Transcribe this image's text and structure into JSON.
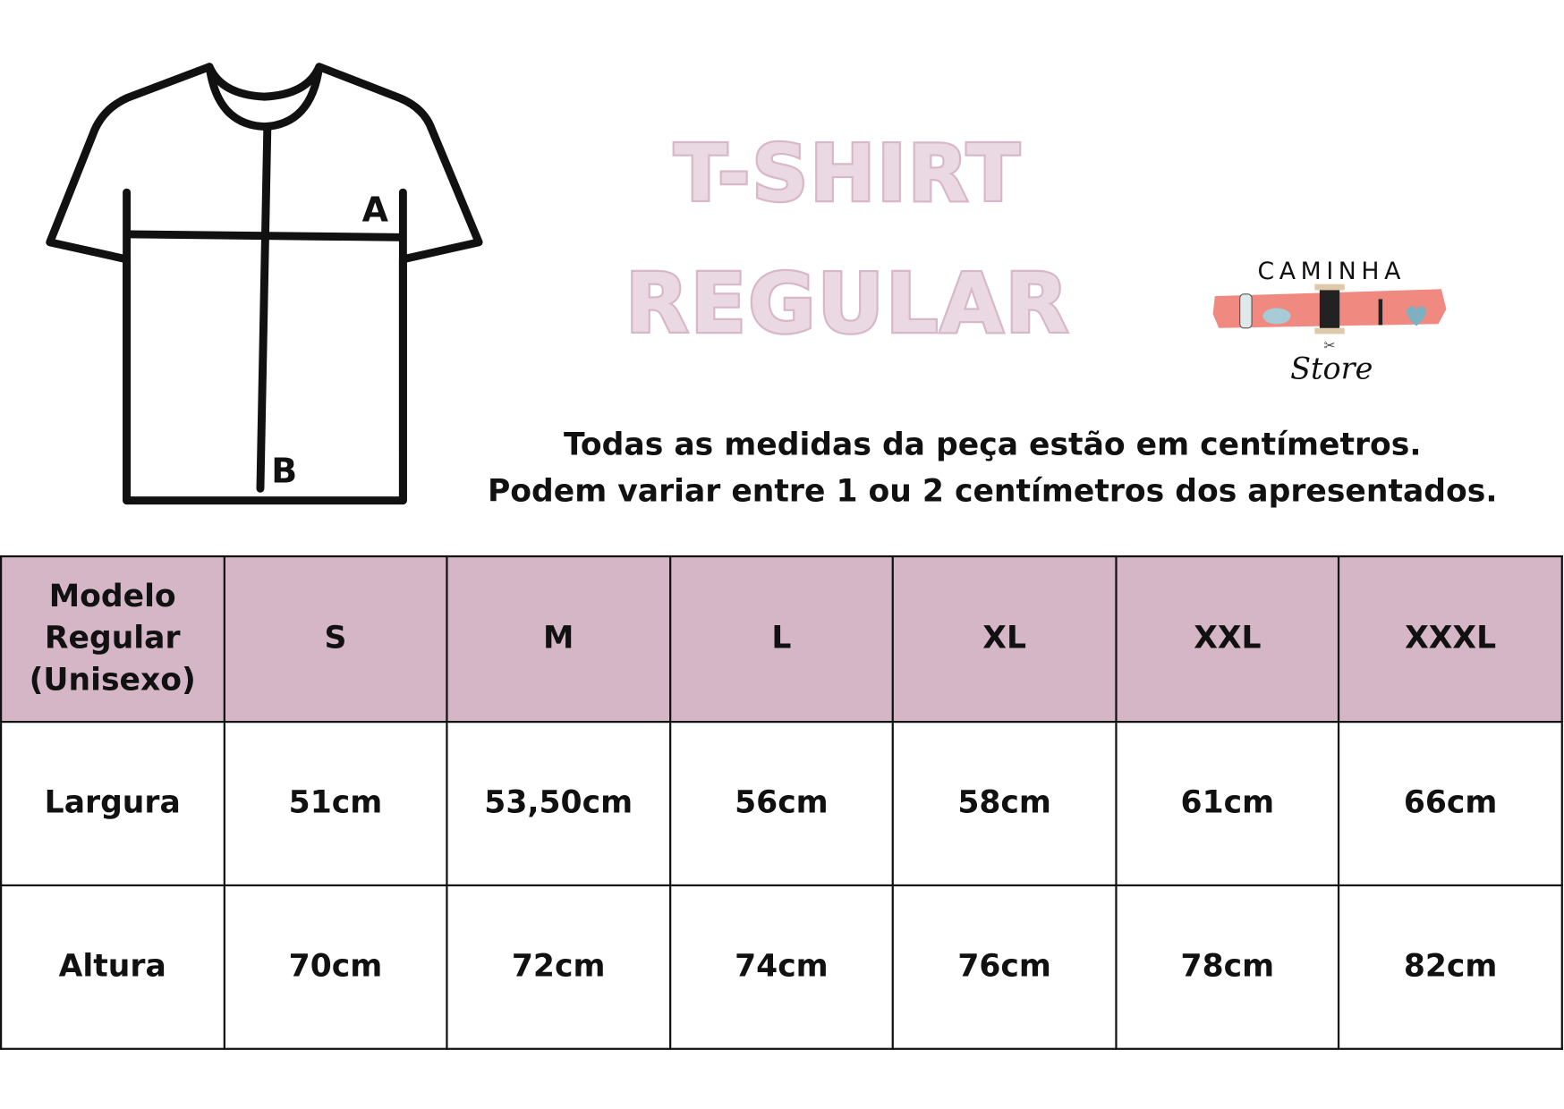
{
  "diagram": {
    "label_a": "A",
    "label_b": "B"
  },
  "title": {
    "line1": "T-SHIRT",
    "line2": "REGULAR"
  },
  "logo": {
    "top_text": "CAMINHA",
    "bottom_text": "Store",
    "accent_color": "#f08a80"
  },
  "notes": {
    "line1": "Todas as medidas da peça estão em centímetros.",
    "line2": "Podem variar entre 1 ou 2 centímetros dos apresentados."
  },
  "colors": {
    "header_bg": "#d5b6c6",
    "title_fill": "#ead9e2",
    "title_stroke": "#d8b8c8"
  },
  "table": {
    "header": [
      "Modelo Regular (Unisexo)",
      "S",
      "M",
      "L",
      "XL",
      "XXL",
      "XXXL"
    ],
    "rows": [
      [
        "Largura",
        "51cm",
        "53,50cm",
        "56cm",
        "58cm",
        "61cm",
        "66cm"
      ],
      [
        "Altura",
        "70cm",
        "72cm",
        "74cm",
        "76cm",
        "78cm",
        "82cm"
      ]
    ]
  }
}
